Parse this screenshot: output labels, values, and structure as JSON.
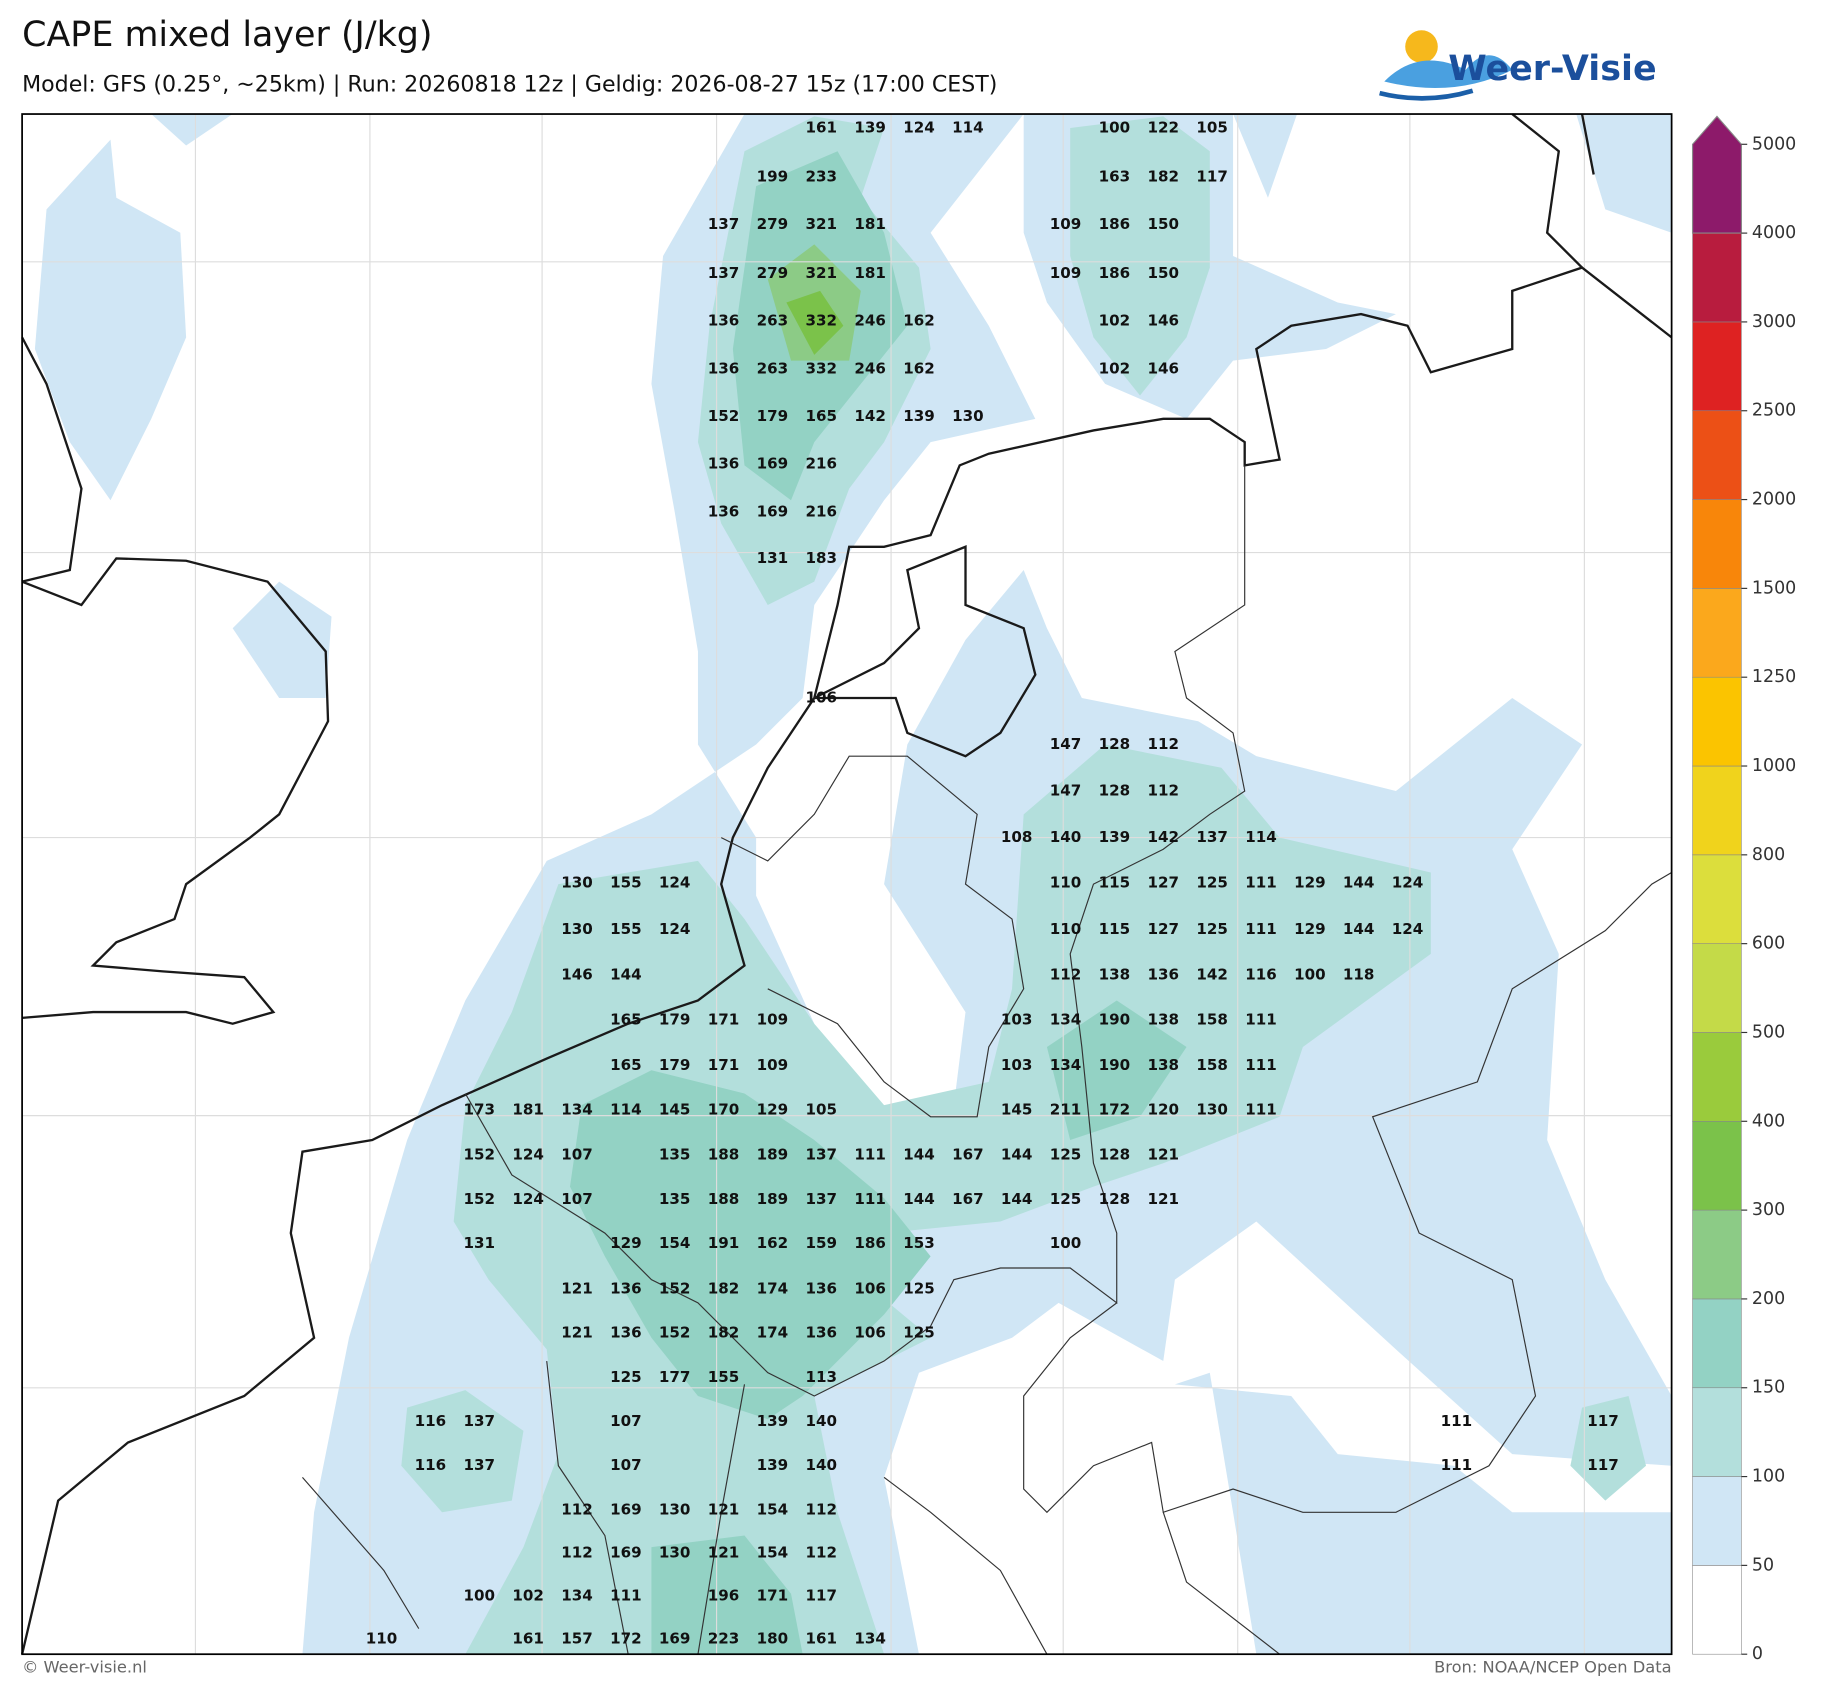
{
  "header": {
    "title": "CAPE mixed layer (J/kg)",
    "subtitle": "Model: GFS (0.25°, ~25km)  |  Run: 20260818 12z  |  Geldig: 2026-08-27 15z (17:00 CEST)",
    "logo": "Weer-Visie"
  },
  "footer": {
    "left": "© Weer-visie.nl",
    "right": "Bron: NOAA/NCEP Open Data"
  },
  "colorbar": {
    "levels": [
      0,
      50,
      100,
      150,
      200,
      300,
      400,
      500,
      600,
      800,
      1000,
      1250,
      1500,
      2000,
      2500,
      3000,
      4000,
      5000
    ],
    "colors": [
      "#ffffff",
      "#d0e6f5",
      "#b3dfdc",
      "#93d2c4",
      "#8ccb86",
      "#7bc24a",
      "#9acb3c",
      "#c4da48",
      "#dcde3c",
      "#f0d31c",
      "#fbc400",
      "#fba81c",
      "#f8860a",
      "#ec5016",
      "#de2222",
      "#b81c3e",
      "#8d1a6a"
    ]
  },
  "map": {
    "rows": [
      [
        161,
        139,
        124,
        114,
        null,
        null,
        100,
        122,
        105
      ],
      [
        199,
        233,
        null,
        null,
        null,
        null,
        null,
        163,
        182,
        117
      ],
      [
        137,
        279,
        321,
        181,
        null,
        null,
        null,
        109,
        186,
        150
      ],
      [
        137,
        279,
        321,
        181,
        null,
        null,
        null,
        109,
        186,
        150
      ],
      [
        136,
        263,
        332,
        246,
        162,
        null,
        null,
        null,
        102,
        146
      ],
      [
        136,
        263,
        332,
        246,
        162,
        null,
        null,
        null,
        102,
        146
      ],
      [
        152,
        179,
        165,
        142,
        139,
        130
      ],
      [
        136,
        169,
        216
      ],
      [
        136,
        169,
        216
      ],
      [
        131,
        183
      ],
      [
        106
      ],
      [
        147,
        128,
        112
      ],
      [
        147,
        128,
        112
      ],
      [
        108,
        140,
        139,
        142,
        137,
        114
      ],
      [
        130,
        155,
        124,
        null,
        null,
        null,
        null,
        null,
        null,
        null,
        110,
        115,
        127,
        125,
        111,
        129,
        144,
        124
      ],
      [
        130,
        155,
        124,
        null,
        null,
        null,
        null,
        null,
        null,
        null,
        110,
        115,
        127,
        125,
        111,
        129,
        144,
        124
      ],
      [
        146,
        144,
        null,
        null,
        null,
        null,
        null,
        null,
        null,
        null,
        112,
        138,
        136,
        142,
        116,
        100,
        118
      ],
      [
        165,
        179,
        171,
        109,
        null,
        null,
        null,
        null,
        103,
        134,
        190,
        138,
        158,
        111
      ],
      [
        165,
        179,
        171,
        109,
        null,
        null,
        null,
        null,
        103,
        134,
        190,
        138,
        158,
        111
      ],
      [
        173,
        181,
        134,
        114,
        145,
        170,
        129,
        105,
        null,
        null,
        null,
        145,
        211,
        172,
        120,
        130,
        111
      ],
      [
        152,
        124,
        107,
        null,
        135,
        188,
        189,
        137,
        111,
        144,
        167,
        144,
        125,
        128,
        121
      ],
      [
        152,
        124,
        107,
        null,
        135,
        188,
        189,
        137,
        111,
        144,
        167,
        144,
        125,
        128,
        121
      ],
      [
        131,
        null,
        null,
        129,
        154,
        191,
        162,
        159,
        186,
        153,
        null,
        null,
        100
      ],
      [
        121,
        136,
        152,
        182,
        174,
        136,
        106,
        125
      ],
      [
        121,
        136,
        152,
        182,
        174,
        136,
        106,
        125
      ],
      [
        125,
        177,
        155,
        null,
        113
      ],
      [
        116,
        137,
        null,
        null,
        107,
        null,
        null,
        139,
        140,
        null,
        null,
        null,
        null,
        null,
        null,
        null,
        null,
        null,
        null,
        null,
        null,
        111,
        null,
        null,
        117
      ],
      [
        116,
        137,
        null,
        null,
        107,
        null,
        null,
        139,
        140,
        null,
        null,
        null,
        null,
        null,
        null,
        null,
        null,
        null,
        null,
        null,
        null,
        111,
        null,
        null,
        117
      ],
      [
        112,
        169,
        130,
        121,
        154,
        112
      ],
      [
        112,
        169,
        130,
        121,
        154,
        112
      ],
      [
        100,
        102,
        134,
        111,
        null,
        196,
        171,
        117
      ],
      [
        110,
        null,
        null,
        161,
        157,
        172,
        169,
        223,
        180,
        161,
        134
      ]
    ]
  }
}
